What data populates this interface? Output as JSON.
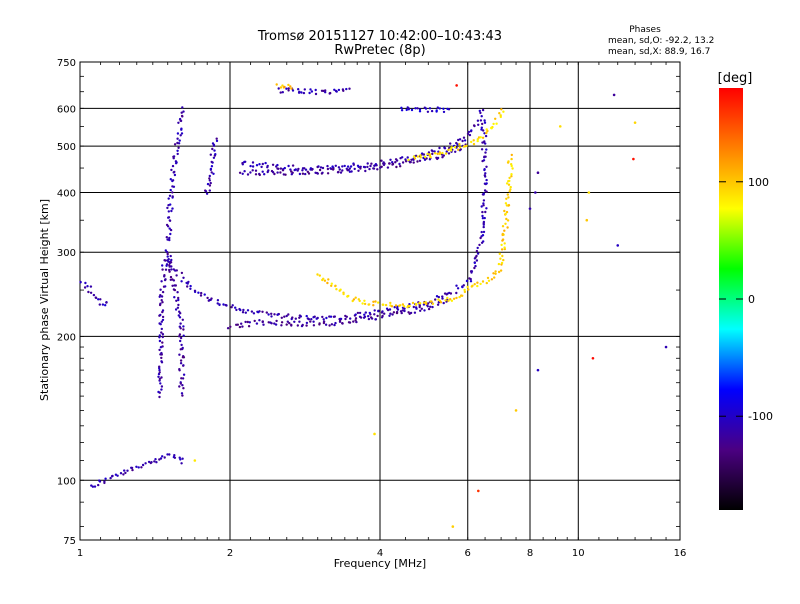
{
  "chart_data": {
    "type": "scatter",
    "title": "Tromsø 20151127 10:42:00–10:43:43",
    "subtitle": "RwPretec (8p)",
    "xlabel": "Frequency [MHz]",
    "ylabel": "Stationary phase Virtual Height [km]",
    "x_scale": "log2",
    "y_scale": "log",
    "xlim": [
      1,
      16
    ],
    "ylim": [
      75,
      750
    ],
    "x_ticks": [
      1,
      2,
      4,
      6,
      8,
      10,
      16
    ],
    "y_ticks": [
      75,
      100,
      200,
      300,
      400,
      500,
      600,
      750
    ],
    "x_grid": [
      2,
      4,
      6,
      8,
      10
    ],
    "y_grid": [
      100,
      200,
      300,
      400,
      500,
      600
    ],
    "grid": true,
    "phase_info": {
      "heading": "Phases",
      "line_o": "mean, sd,O: -92.2, 13.2",
      "line_x": "mean, sd,X: 88.9, 16.7"
    },
    "colorbar": {
      "label": "[deg]",
      "range": [
        -180,
        180
      ],
      "ticks": [
        100,
        0,
        -100
      ],
      "colors": [
        "#000000",
        "#4b0082",
        "#0000ff",
        "#00ffff",
        "#00ff00",
        "#ffff00",
        "#ff8000",
        "#ff0000"
      ]
    },
    "series": [
      {
        "points": [
          [
            1.05,
            97
          ],
          [
            1.12,
            100
          ],
          [
            1.2,
            103
          ],
          [
            1.3,
            106
          ],
          [
            1.4,
            110
          ],
          [
            1.5,
            113
          ],
          [
            1.58,
            112
          ],
          [
            1.62,
            108
          ]
        ],
        "phase": -110
      },
      {
        "points": [
          [
            1.45,
            150
          ],
          [
            1.45,
            210
          ],
          [
            1.47,
            270
          ],
          [
            1.5,
            300
          ],
          [
            1.55,
            250
          ],
          [
            1.6,
            210
          ],
          [
            1.6,
            150
          ]
        ],
        "phase": -115
      },
      {
        "points": [
          [
            1.5,
            315
          ],
          [
            1.52,
            390
          ],
          [
            1.55,
            475
          ],
          [
            1.58,
            520
          ],
          [
            1.6,
            570
          ],
          [
            1.62,
            605
          ]
        ],
        "phase": -112
      },
      {
        "points": [
          [
            1.0,
            260
          ],
          [
            1.05,
            250
          ],
          [
            1.1,
            235
          ],
          [
            1.15,
            232
          ]
        ],
        "phase": -105
      },
      {
        "points": [
          [
            1.8,
            395
          ],
          [
            1.85,
            450
          ],
          [
            1.85,
            500
          ],
          [
            1.9,
            520
          ]
        ],
        "phase": -112
      },
      {
        "points": [
          [
            1.5,
            290
          ],
          [
            1.65,
            255
          ],
          [
            1.8,
            240
          ],
          [
            2.0,
            230
          ],
          [
            2.3,
            224
          ],
          [
            2.6,
            220
          ],
          [
            3.0,
            219
          ],
          [
            3.5,
            220
          ],
          [
            4.0,
            225
          ],
          [
            4.5,
            230
          ],
          [
            5.0,
            235
          ],
          [
            5.5,
            245
          ],
          [
            6.0,
            260
          ],
          [
            6.2,
            280
          ],
          [
            6.4,
            320
          ],
          [
            6.5,
            400
          ],
          [
            6.5,
            480
          ],
          [
            6.45,
            540
          ],
          [
            6.4,
            600
          ]
        ],
        "phase": -110
      },
      {
        "points": [
          [
            2.0,
            210
          ],
          [
            2.3,
            214
          ],
          [
            2.6,
            213
          ],
          [
            3.0,
            212
          ],
          [
            3.5,
            215
          ],
          [
            4.0,
            220
          ],
          [
            4.5,
            225
          ],
          [
            5.0,
            230
          ],
          [
            5.5,
            238
          ]
        ],
        "phase": -118
      },
      {
        "points": [
          [
            3.0,
            270
          ],
          [
            3.2,
            255
          ],
          [
            3.5,
            240
          ],
          [
            3.8,
            235
          ],
          [
            4.2,
            233
          ],
          [
            4.6,
            232
          ],
          [
            5.0,
            234
          ],
          [
            5.6,
            240
          ],
          [
            6.2,
            255
          ],
          [
            6.7,
            265
          ],
          [
            7.0,
            280
          ],
          [
            7.1,
            320
          ],
          [
            7.2,
            380
          ],
          [
            7.3,
            440
          ],
          [
            7.3,
            480
          ]
        ],
        "phase": 95
      },
      {
        "points": [
          [
            2.1,
            460
          ],
          [
            2.4,
            455
          ],
          [
            2.8,
            450
          ],
          [
            3.2,
            450
          ],
          [
            3.6,
            455
          ],
          [
            4.0,
            462
          ],
          [
            4.5,
            470
          ],
          [
            5.0,
            485
          ],
          [
            5.5,
            500
          ],
          [
            6.0,
            525
          ],
          [
            6.3,
            570
          ]
        ],
        "phase": -110
      },
      {
        "points": [
          [
            2.1,
            440
          ],
          [
            2.5,
            440
          ],
          [
            3.0,
            443
          ],
          [
            3.5,
            446
          ],
          [
            4.0,
            452
          ],
          [
            4.5,
            460
          ],
          [
            5.0,
            470
          ],
          [
            5.5,
            485
          ],
          [
            6.0,
            500
          ]
        ],
        "phase": -118
      },
      {
        "points": [
          [
            4.6,
            470
          ],
          [
            5.0,
            478
          ],
          [
            5.5,
            490
          ],
          [
            6.0,
            505
          ],
          [
            6.4,
            520
          ],
          [
            6.8,
            555
          ],
          [
            7.1,
            600
          ]
        ],
        "phase": 92
      },
      {
        "points": [
          [
            2.5,
            655
          ],
          [
            2.8,
            653
          ],
          [
            3.0,
            650
          ],
          [
            3.3,
            650
          ],
          [
            3.5,
            652
          ]
        ],
        "phase": -112
      },
      {
        "points": [
          [
            2.5,
            670
          ],
          [
            2.6,
            668
          ],
          [
            2.7,
            667
          ]
        ],
        "phase": 105
      },
      {
        "points": [
          [
            4.4,
            600
          ],
          [
            4.8,
            598
          ],
          [
            5.2,
            596
          ],
          [
            5.6,
            596
          ]
        ],
        "phase": -100
      },
      {
        "points": [
          [
            8.3,
            440
          ],
          [
            8.2,
            400
          ],
          [
            8.0,
            370
          ],
          [
            11.8,
            640
          ],
          [
            15.0,
            190
          ],
          [
            12.0,
            310
          ],
          [
            8.3,
            170
          ]
        ],
        "phase": -110
      },
      {
        "points": [
          [
            9.2,
            550
          ],
          [
            10.4,
            350
          ],
          [
            13.0,
            560
          ],
          [
            10.5,
            400
          ],
          [
            7.5,
            140
          ],
          [
            5.6,
            80
          ],
          [
            3.9,
            125
          ],
          [
            1.7,
            110
          ]
        ],
        "phase": 90
      },
      {
        "points": [
          [
            6.3,
            95
          ],
          [
            5.7,
            670
          ],
          [
            12.9,
            470
          ],
          [
            10.7,
            180
          ]
        ],
        "phase": 170
      }
    ]
  }
}
